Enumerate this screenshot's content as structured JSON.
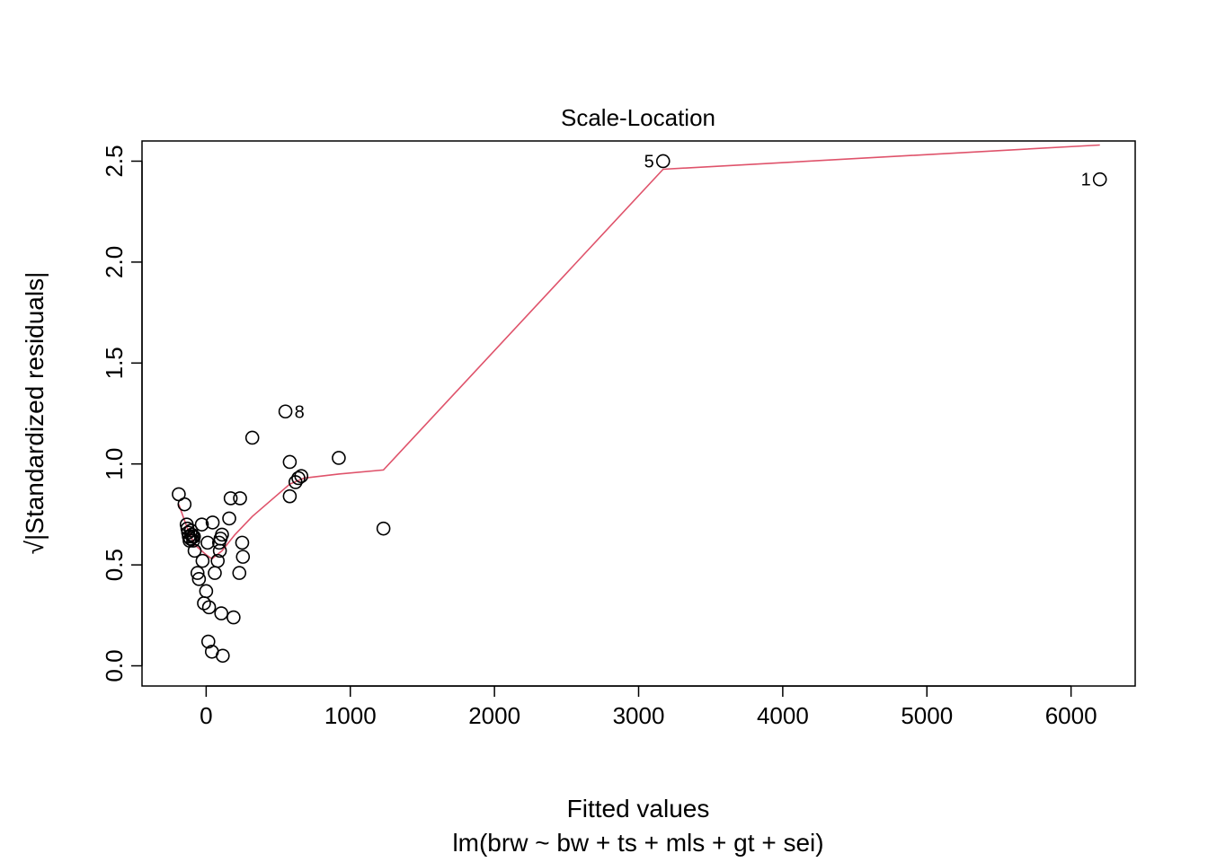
{
  "chart_data": {
    "type": "scatter",
    "title": "Scale-Location",
    "xlabel": "Fitted values",
    "subtitle": "lm(brw ~ bw + ts + mls + gt + sei)",
    "ylabel": "√|Standardized residuals|",
    "xlim": [
      -445,
      6445
    ],
    "ylim": [
      -0.1,
      2.6
    ],
    "x_ticks": [
      0,
      1000,
      2000,
      3000,
      4000,
      5000,
      6000
    ],
    "y_ticks": [
      0.0,
      0.5,
      1.0,
      1.5,
      2.0,
      2.5
    ],
    "x_tick_labels": [
      "0",
      "1000",
      "2000",
      "3000",
      "4000",
      "5000",
      "6000"
    ],
    "y_tick_labels": [
      "0.0",
      "0.5",
      "1.0",
      "1.5",
      "2.0",
      "2.5"
    ],
    "grid": false,
    "colors": {
      "points": "#000000",
      "smoother": "#DF536B"
    },
    "points": [
      {
        "x": 6200,
        "y": 2.41,
        "label": "1"
      },
      {
        "x": 3170,
        "y": 2.5,
        "label": "5"
      },
      {
        "x": 550,
        "y": 1.26,
        "label": "8"
      },
      {
        "x": 320,
        "y": 1.13
      },
      {
        "x": 920,
        "y": 1.03
      },
      {
        "x": 580,
        "y": 1.01
      },
      {
        "x": 660,
        "y": 0.94
      },
      {
        "x": 640,
        "y": 0.93
      },
      {
        "x": 620,
        "y": 0.91
      },
      {
        "x": 580,
        "y": 0.84
      },
      {
        "x": 1230,
        "y": 0.68
      },
      {
        "x": -190,
        "y": 0.85
      },
      {
        "x": -150,
        "y": 0.8
      },
      {
        "x": -135,
        "y": 0.7
      },
      {
        "x": -130,
        "y": 0.68
      },
      {
        "x": -125,
        "y": 0.66
      },
      {
        "x": -120,
        "y": 0.64
      },
      {
        "x": -115,
        "y": 0.62
      },
      {
        "x": -110,
        "y": 0.63
      },
      {
        "x": -105,
        "y": 0.67
      },
      {
        "x": -100,
        "y": 0.65
      },
      {
        "x": -95,
        "y": 0.64
      },
      {
        "x": -90,
        "y": 0.62
      },
      {
        "x": -85,
        "y": 0.64
      },
      {
        "x": -80,
        "y": 0.57
      },
      {
        "x": -60,
        "y": 0.46
      },
      {
        "x": -50,
        "y": 0.43
      },
      {
        "x": -30,
        "y": 0.7
      },
      {
        "x": -25,
        "y": 0.52
      },
      {
        "x": -15,
        "y": 0.31
      },
      {
        "x": 0,
        "y": 0.37
      },
      {
        "x": 10,
        "y": 0.61
      },
      {
        "x": 15,
        "y": 0.12
      },
      {
        "x": 20,
        "y": 0.29
      },
      {
        "x": 40,
        "y": 0.07
      },
      {
        "x": 45,
        "y": 0.71
      },
      {
        "x": 60,
        "y": 0.46
      },
      {
        "x": 80,
        "y": 0.52
      },
      {
        "x": 90,
        "y": 0.61
      },
      {
        "x": 95,
        "y": 0.57
      },
      {
        "x": 100,
        "y": 0.63
      },
      {
        "x": 105,
        "y": 0.26
      },
      {
        "x": 110,
        "y": 0.65
      },
      {
        "x": 115,
        "y": 0.05
      },
      {
        "x": 160,
        "y": 0.73
      },
      {
        "x": 170,
        "y": 0.83
      },
      {
        "x": 190,
        "y": 0.24
      },
      {
        "x": 230,
        "y": 0.46
      },
      {
        "x": 235,
        "y": 0.83
      },
      {
        "x": 250,
        "y": 0.61
      },
      {
        "x": 255,
        "y": 0.54
      }
    ],
    "smoother": [
      {
        "x": -190,
        "y": 0.8
      },
      {
        "x": -130,
        "y": 0.68
      },
      {
        "x": -80,
        "y": 0.6
      },
      {
        "x": 0,
        "y": 0.55
      },
      {
        "x": 40,
        "y": 0.53
      },
      {
        "x": 110,
        "y": 0.57
      },
      {
        "x": 200,
        "y": 0.65
      },
      {
        "x": 320,
        "y": 0.74
      },
      {
        "x": 450,
        "y": 0.82
      },
      {
        "x": 580,
        "y": 0.9
      },
      {
        "x": 680,
        "y": 0.93
      },
      {
        "x": 920,
        "y": 0.95
      },
      {
        "x": 1230,
        "y": 0.97
      },
      {
        "x": 3170,
        "y": 2.46
      },
      {
        "x": 6200,
        "y": 2.58
      }
    ]
  }
}
